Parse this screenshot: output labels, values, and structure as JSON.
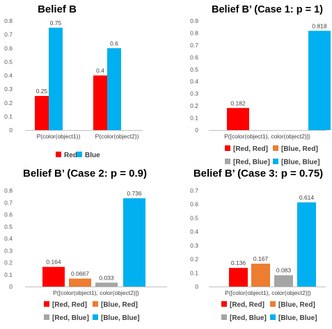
{
  "colors": {
    "red": "#ff0000",
    "blue": "#00b0f0",
    "orange": "#ed7d31",
    "gray": "#a5a5a5"
  },
  "chart_data": [
    {
      "type": "bar",
      "title": "Belief B",
      "categories": [
        "P(color(object1))",
        "P(color(object2))"
      ],
      "series": [
        {
          "name": "Red",
          "color": "red",
          "values": [
            0.25,
            0.4
          ],
          "labels": [
            "0.25",
            "0.4"
          ]
        },
        {
          "name": "Blue",
          "color": "blue",
          "values": [
            0.75,
            0.6
          ],
          "labels": [
            "0.75",
            "0.6"
          ]
        }
      ],
      "ylim": [
        0,
        0.8
      ],
      "yticks": [
        "0",
        "0.1",
        "0.2",
        "0.3",
        "0.4",
        "0.5",
        "0.6",
        "0.7",
        "0.8"
      ],
      "legend": [
        {
          "name": "Red",
          "color": "red"
        },
        {
          "name": "Blue",
          "color": "blue"
        }
      ],
      "legend_position": "bottom",
      "grid": false
    },
    {
      "type": "bar",
      "title": "Belief B’ (Case 1: p = 1)",
      "categories": [
        "P([color(object1), color(object2)])"
      ],
      "series": [
        {
          "name": "[Red, Red]",
          "color": "red",
          "values": [
            0.182
          ],
          "labels": [
            "0.182"
          ]
        },
        {
          "name": "[Blue, Blue]",
          "color": "blue",
          "values": [
            0.818
          ],
          "labels": [
            "0.818"
          ]
        }
      ],
      "ylim": [
        0,
        0.9
      ],
      "yticks": [
        "0",
        "0.1",
        "0.2",
        "0.3",
        "0.4",
        "0.5",
        "0.6",
        "0.7",
        "0.8",
        "0.9"
      ],
      "legend": [
        {
          "name": "[Red, Red]",
          "color": "red"
        },
        {
          "name": "[Blue, Red]",
          "color": "orange"
        },
        {
          "name": "[Red, Blue]",
          "color": "gray"
        },
        {
          "name": "[Blue, Blue]",
          "color": "blue"
        }
      ],
      "legend_position": "bottom",
      "grid": false
    },
    {
      "type": "bar",
      "title": "Belief B’ (Case 2: p = 0.9)",
      "categories": [
        "P([color(object1), color(object2)])"
      ],
      "series": [
        {
          "name": "[Red, Red]",
          "color": "red",
          "values": [
            0.164
          ],
          "labels": [
            "0.164"
          ]
        },
        {
          "name": "[Blue, Red]",
          "color": "orange",
          "values": [
            0.0667
          ],
          "labels": [
            "0.0667"
          ]
        },
        {
          "name": "[Red, Blue]",
          "color": "gray",
          "values": [
            0.033
          ],
          "labels": [
            "0.033"
          ]
        },
        {
          "name": "[Blue, Blue]",
          "color": "blue",
          "values": [
            0.736
          ],
          "labels": [
            "0.736"
          ]
        }
      ],
      "ylim": [
        0,
        0.8
      ],
      "yticks": [
        "0",
        "0.1",
        "0.2",
        "0.3",
        "0.4",
        "0.5",
        "0.6",
        "0.7",
        "0.8"
      ],
      "legend": [
        {
          "name": "[Red, Red]",
          "color": "red"
        },
        {
          "name": "[Blue, Red]",
          "color": "orange"
        },
        {
          "name": "[Red, Blue]",
          "color": "gray"
        },
        {
          "name": "[Blue, Blue]",
          "color": "blue"
        }
      ],
      "legend_position": "bottom",
      "grid": false
    },
    {
      "type": "bar",
      "title": "Belief B’ (Case 3: p = 0.75)",
      "categories": [
        "P([color(object1), color(object2)])"
      ],
      "series": [
        {
          "name": "[Red, Red]",
          "color": "red",
          "values": [
            0.136
          ],
          "labels": [
            "0.136"
          ]
        },
        {
          "name": "[Blue, Red]",
          "color": "orange",
          "values": [
            0.167
          ],
          "labels": [
            "0.167"
          ]
        },
        {
          "name": "[Red, Blue]",
          "color": "gray",
          "values": [
            0.083
          ],
          "labels": [
            "0.083"
          ]
        },
        {
          "name": "[Blue, Blue]",
          "color": "blue",
          "values": [
            0.614
          ],
          "labels": [
            "0.614"
          ]
        }
      ],
      "ylim": [
        0,
        0.7
      ],
      "yticks": [
        "0",
        "0.1",
        "0.2",
        "0.3",
        "0.4",
        "0.5",
        "0.6",
        "0.7"
      ],
      "legend": [
        {
          "name": "[Red, Red]",
          "color": "red"
        },
        {
          "name": "[Blue, Red]",
          "color": "orange"
        },
        {
          "name": "[Red, Blue]",
          "color": "gray"
        },
        {
          "name": "[Blue, Blue]",
          "color": "blue"
        }
      ],
      "legend_position": "bottom",
      "grid": false
    }
  ]
}
